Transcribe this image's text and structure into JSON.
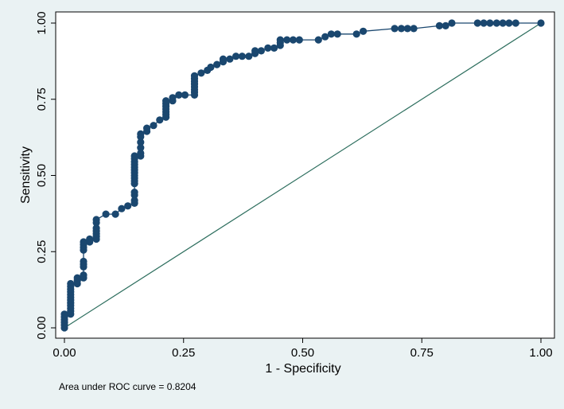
{
  "chart_data": {
    "type": "scatter",
    "xlabel": "1 - Specificity",
    "ylabel": "Sensitivity",
    "xlim": [
      0,
      1
    ],
    "ylim": [
      0,
      1
    ],
    "x_ticks": [
      "0.00",
      "0.25",
      "0.50",
      "0.75",
      "1.00"
    ],
    "y_ticks": [
      "0.00",
      "0.25",
      "0.50",
      "0.75",
      "1.00"
    ],
    "grid": false,
    "legend": "none",
    "note": "Area under ROC curve = 0.8204",
    "colors": {
      "marker": "#1a476f",
      "reference_line": "#2d6e5e",
      "plot_background": "#ffffff",
      "page_background": "#eaf2f3"
    },
    "series": [
      {
        "style": "connected-markers",
        "points": [
          [
            0.0,
            0.0
          ],
          [
            0.0,
            0.009
          ],
          [
            0.0,
            0.018
          ],
          [
            0.0,
            0.027
          ],
          [
            0.0,
            0.036
          ],
          [
            0.0,
            0.045
          ],
          [
            0.013,
            0.045
          ],
          [
            0.013,
            0.055
          ],
          [
            0.013,
            0.064
          ],
          [
            0.013,
            0.073
          ],
          [
            0.013,
            0.082
          ],
          [
            0.013,
            0.091
          ],
          [
            0.013,
            0.1
          ],
          [
            0.013,
            0.109
          ],
          [
            0.013,
            0.118
          ],
          [
            0.013,
            0.127
          ],
          [
            0.013,
            0.136
          ],
          [
            0.013,
            0.145
          ],
          [
            0.027,
            0.145
          ],
          [
            0.027,
            0.155
          ],
          [
            0.027,
            0.164
          ],
          [
            0.04,
            0.164
          ],
          [
            0.04,
            0.173
          ],
          [
            0.04,
            0.2
          ],
          [
            0.04,
            0.209
          ],
          [
            0.04,
            0.218
          ],
          [
            0.04,
            0.255
          ],
          [
            0.04,
            0.264
          ],
          [
            0.04,
            0.273
          ],
          [
            0.04,
            0.282
          ],
          [
            0.053,
            0.282
          ],
          [
            0.053,
            0.291
          ],
          [
            0.067,
            0.291
          ],
          [
            0.067,
            0.3
          ],
          [
            0.067,
            0.309
          ],
          [
            0.067,
            0.318
          ],
          [
            0.067,
            0.327
          ],
          [
            0.067,
            0.345
          ],
          [
            0.067,
            0.355
          ],
          [
            0.087,
            0.373
          ],
          [
            0.107,
            0.373
          ],
          [
            0.12,
            0.391
          ],
          [
            0.133,
            0.4
          ],
          [
            0.147,
            0.409
          ],
          [
            0.147,
            0.418
          ],
          [
            0.147,
            0.436
          ],
          [
            0.147,
            0.445
          ],
          [
            0.147,
            0.473
          ],
          [
            0.147,
            0.482
          ],
          [
            0.147,
            0.491
          ],
          [
            0.147,
            0.5
          ],
          [
            0.147,
            0.509
          ],
          [
            0.147,
            0.518
          ],
          [
            0.147,
            0.527
          ],
          [
            0.147,
            0.536
          ],
          [
            0.147,
            0.545
          ],
          [
            0.147,
            0.555
          ],
          [
            0.147,
            0.564
          ],
          [
            0.16,
            0.564
          ],
          [
            0.16,
            0.573
          ],
          [
            0.16,
            0.591
          ],
          [
            0.16,
            0.609
          ],
          [
            0.16,
            0.627
          ],
          [
            0.16,
            0.636
          ],
          [
            0.173,
            0.645
          ],
          [
            0.173,
            0.655
          ],
          [
            0.187,
            0.664
          ],
          [
            0.2,
            0.682
          ],
          [
            0.213,
            0.691
          ],
          [
            0.213,
            0.7
          ],
          [
            0.213,
            0.709
          ],
          [
            0.213,
            0.718
          ],
          [
            0.213,
            0.727
          ],
          [
            0.213,
            0.736
          ],
          [
            0.213,
            0.745
          ],
          [
            0.227,
            0.745
          ],
          [
            0.227,
            0.755
          ],
          [
            0.24,
            0.764
          ],
          [
            0.253,
            0.764
          ],
          [
            0.273,
            0.764
          ],
          [
            0.273,
            0.773
          ],
          [
            0.273,
            0.782
          ],
          [
            0.273,
            0.791
          ],
          [
            0.273,
            0.8
          ],
          [
            0.273,
            0.809
          ],
          [
            0.273,
            0.818
          ],
          [
            0.273,
            0.827
          ],
          [
            0.287,
            0.836
          ],
          [
            0.3,
            0.845
          ],
          [
            0.307,
            0.855
          ],
          [
            0.32,
            0.864
          ],
          [
            0.333,
            0.873
          ],
          [
            0.333,
            0.882
          ],
          [
            0.347,
            0.882
          ],
          [
            0.36,
            0.891
          ],
          [
            0.373,
            0.891
          ],
          [
            0.387,
            0.891
          ],
          [
            0.4,
            0.9
          ],
          [
            0.4,
            0.909
          ],
          [
            0.413,
            0.909
          ],
          [
            0.427,
            0.918
          ],
          [
            0.44,
            0.918
          ],
          [
            0.453,
            0.927
          ],
          [
            0.453,
            0.936
          ],
          [
            0.453,
            0.945
          ],
          [
            0.467,
            0.945
          ],
          [
            0.48,
            0.945
          ],
          [
            0.493,
            0.945
          ],
          [
            0.533,
            0.945
          ],
          [
            0.547,
            0.955
          ],
          [
            0.56,
            0.964
          ],
          [
            0.573,
            0.964
          ],
          [
            0.613,
            0.964
          ],
          [
            0.627,
            0.973
          ],
          [
            0.693,
            0.982
          ],
          [
            0.707,
            0.982
          ],
          [
            0.72,
            0.982
          ],
          [
            0.733,
            0.982
          ],
          [
            0.787,
            0.991
          ],
          [
            0.8,
            0.991
          ],
          [
            0.813,
            1.0
          ],
          [
            0.867,
            1.0
          ],
          [
            0.88,
            1.0
          ],
          [
            0.893,
            1.0
          ],
          [
            0.907,
            1.0
          ],
          [
            0.92,
            1.0
          ],
          [
            0.933,
            1.0
          ],
          [
            0.947,
            1.0
          ],
          [
            1.0,
            1.0
          ]
        ]
      },
      {
        "style": "reference-line",
        "points": [
          [
            0,
            0
          ],
          [
            1,
            1
          ]
        ]
      }
    ]
  }
}
